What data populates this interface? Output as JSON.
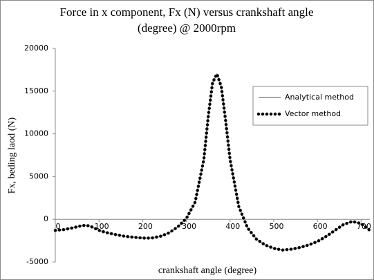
{
  "chart_data": {
    "type": "line",
    "title": "Force in x component, Fx (N) versus crankshaft angle",
    "subtitle": "(degree) @ 2000rpm",
    "xlabel": "crankshaft  angle (degree)",
    "ylabel": "Fx, beding laod (N)",
    "x": [
      0,
      20,
      40,
      60,
      70,
      80,
      100,
      120,
      140,
      160,
      180,
      200,
      220,
      240,
      260,
      280,
      300,
      320,
      340,
      350,
      360,
      370,
      380,
      390,
      400,
      420,
      440,
      460,
      480,
      500,
      520,
      540,
      560,
      580,
      600,
      620,
      640,
      660,
      680,
      700,
      720
    ],
    "series": [
      {
        "name": "Analytical method",
        "color": "#a6a6a6",
        "style": "solid",
        "values": [
          -1300,
          -1200,
          -1000,
          -750,
          -700,
          -800,
          -1300,
          -1600,
          -1800,
          -2000,
          -2100,
          -2200,
          -2200,
          -2000,
          -1600,
          -900,
          100,
          2000,
          7000,
          12000,
          16000,
          17000,
          15500,
          11500,
          7000,
          1500,
          -1000,
          -2300,
          -3000,
          -3400,
          -3600,
          -3500,
          -3300,
          -3000,
          -2600,
          -2000,
          -1300,
          -600,
          -250,
          -500,
          -1300
        ]
      },
      {
        "name": "Vector method",
        "color": "#000000",
        "style": "dotted",
        "values": [
          -1300,
          -1200,
          -1000,
          -750,
          -700,
          -800,
          -1300,
          -1600,
          -1800,
          -2000,
          -2100,
          -2200,
          -2200,
          -2000,
          -1600,
          -900,
          100,
          2000,
          7000,
          12000,
          16000,
          17000,
          15500,
          11500,
          7000,
          1500,
          -1000,
          -2300,
          -3000,
          -3400,
          -3600,
          -3500,
          -3300,
          -3000,
          -2600,
          -2000,
          -1300,
          -600,
          -250,
          -500,
          -1300
        ]
      }
    ],
    "xlim": [
      0,
      720
    ],
    "xticks": [
      0,
      100,
      200,
      300,
      400,
      500,
      600,
      700
    ],
    "ylim": [
      -5000,
      20000
    ],
    "yticks": [
      -5000,
      0,
      5000,
      10000,
      15000,
      20000
    ],
    "grid": false,
    "legend": "right"
  }
}
